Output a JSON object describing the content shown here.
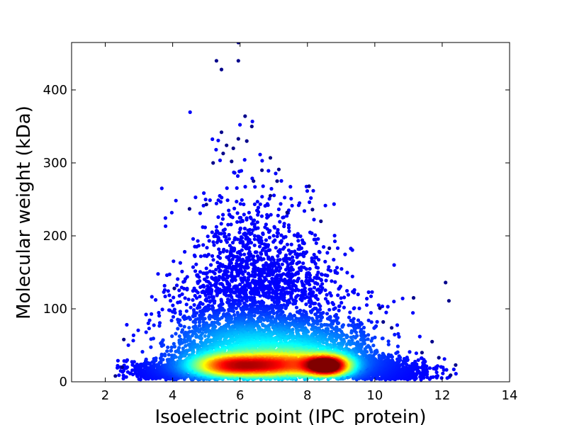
{
  "chart_data": {
    "type": "scatter",
    "title": "",
    "xlabel": "Isoelectric point (IPC_protein)",
    "ylabel": "Molecular weight (kDa)",
    "xlim": [
      1,
      14
    ],
    "ylim": [
      0,
      465
    ],
    "xticks": [
      2,
      4,
      6,
      8,
      10,
      12,
      14
    ],
    "yticks": [
      0,
      100,
      200,
      300,
      400
    ],
    "grid": false,
    "legend": "none",
    "colormap": "jet (point density)",
    "colors": {
      "low_density": "#00008b",
      "high_density": "#8b0000"
    },
    "clusters": [
      {
        "x": 5.5,
        "y": 22,
        "density": "high"
      },
      {
        "x": 6.5,
        "y": 22,
        "density": "high"
      },
      {
        "x": 8.6,
        "y": 22,
        "density": "highest"
      }
    ],
    "outliers": [
      {
        "x": 5.95,
        "y": 465
      },
      {
        "x": 5.3,
        "y": 440
      },
      {
        "x": 5.95,
        "y": 440
      },
      {
        "x": 5.45,
        "y": 428
      },
      {
        "x": 6.15,
        "y": 364
      },
      {
        "x": 6.35,
        "y": 350
      },
      {
        "x": 5.45,
        "y": 342
      },
      {
        "x": 5.95,
        "y": 333
      },
      {
        "x": 5.6,
        "y": 324
      },
      {
        "x": 6.2,
        "y": 330
      },
      {
        "x": 5.8,
        "y": 320
      },
      {
        "x": 5.5,
        "y": 313
      },
      {
        "x": 6.9,
        "y": 307
      },
      {
        "x": 5.2,
        "y": 300
      },
      {
        "x": 5.75,
        "y": 302
      },
      {
        "x": 6.65,
        "y": 290
      },
      {
        "x": 7.15,
        "y": 291
      },
      {
        "x": 6.4,
        "y": 275
      },
      {
        "x": 7.1,
        "y": 275
      },
      {
        "x": 8.05,
        "y": 268
      },
      {
        "x": 6.9,
        "y": 255
      },
      {
        "x": 4.5,
        "y": 237
      },
      {
        "x": 5.0,
        "y": 243
      },
      {
        "x": 8.15,
        "y": 236
      },
      {
        "x": 7.4,
        "y": 232
      },
      {
        "x": 8.4,
        "y": 220
      },
      {
        "x": 8.65,
        "y": 183
      },
      {
        "x": 4.05,
        "y": 128
      },
      {
        "x": 2.55,
        "y": 58
      },
      {
        "x": 10.15,
        "y": 101
      },
      {
        "x": 10.5,
        "y": 74
      },
      {
        "x": 10.25,
        "y": 82
      },
      {
        "x": 11.15,
        "y": 115
      },
      {
        "x": 12.1,
        "y": 136
      },
      {
        "x": 12.2,
        "y": 111
      },
      {
        "x": 11.7,
        "y": 55
      },
      {
        "x": 11.9,
        "y": 33
      },
      {
        "x": 12.4,
        "y": 23
      },
      {
        "x": 12.25,
        "y": 9
      },
      {
        "x": 11.4,
        "y": 40
      },
      {
        "x": 2.3,
        "y": 8
      },
      {
        "x": 2.5,
        "y": 20
      }
    ]
  }
}
